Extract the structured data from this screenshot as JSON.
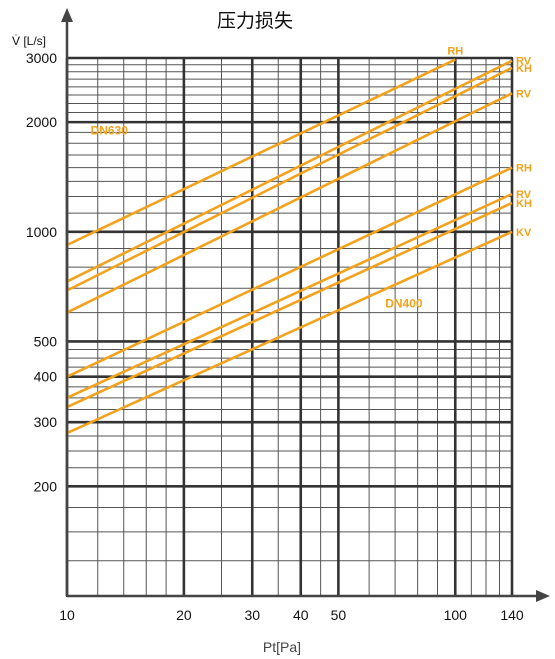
{
  "chart_data": {
    "type": "line",
    "title": "压力损失",
    "xlabel": "Pt[Pa]",
    "ylabel": "V̇ [L/s]",
    "x_scale": "log",
    "y_scale": "log",
    "xlim": [
      10,
      140
    ],
    "ylim": [
      100,
      3000
    ],
    "grid": true,
    "x_ticks": [
      10,
      20,
      30,
      40,
      50,
      100,
      140
    ],
    "y_ticks": [
      200,
      300,
      400,
      500,
      1000,
      2000,
      3000
    ],
    "annotations": [
      {
        "text": "DN630",
        "x": 11.5,
        "y": 1850
      },
      {
        "text": "DN400",
        "x": 66,
        "y": 620
      }
    ],
    "series": [
      {
        "name": "RH",
        "x": [
          10,
          100
        ],
        "y": [
          920,
          2970
        ]
      },
      {
        "name": "RV",
        "x": [
          10,
          140
        ],
        "y": [
          730,
          2950
        ]
      },
      {
        "name": "KH",
        "x": [
          10,
          140
        ],
        "y": [
          690,
          2820
        ]
      },
      {
        "name": "RV",
        "x": [
          10,
          140
        ],
        "y": [
          600,
          2400
        ]
      },
      {
        "name": "RH",
        "x": [
          10,
          140
        ],
        "y": [
          400,
          1500
        ]
      },
      {
        "name": "RV",
        "x": [
          10,
          140
        ],
        "y": [
          350,
          1270
        ]
      },
      {
        "name": "KH",
        "x": [
          10,
          140
        ],
        "y": [
          330,
          1200
        ]
      },
      {
        "name": "KV",
        "x": [
          10,
          140
        ],
        "y": [
          280,
          1000
        ]
      }
    ]
  },
  "colors": {
    "series": "#F2A21C",
    "grid_minor": "#555555",
    "grid_major": "#333333",
    "axis": "#444444"
  }
}
